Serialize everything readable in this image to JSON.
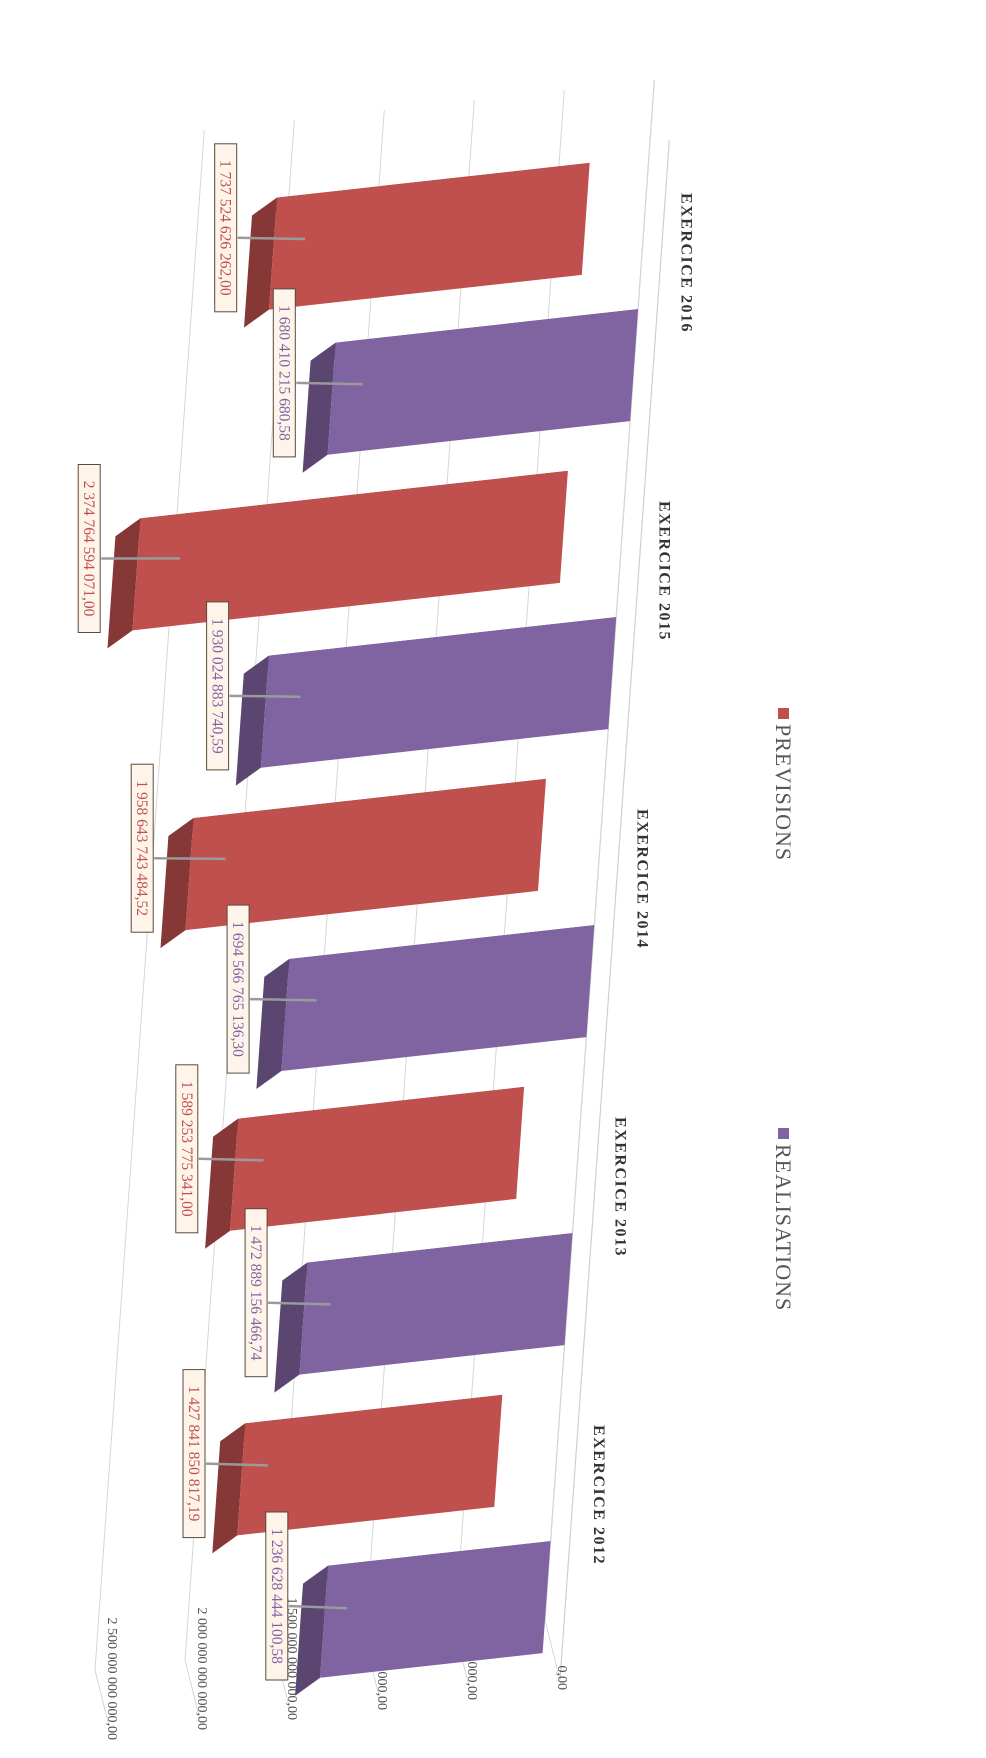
{
  "chart_data": {
    "type": "bar",
    "orientation": "3d-clustered-column",
    "categories": [
      "EXERCICE 2012",
      "EXERCICE 2013",
      "EXERCICE 2014",
      "EXERCICE 2015",
      "EXERCICE 2016"
    ],
    "series": [
      {
        "name": "PREVISIONS",
        "color": "#c0504d",
        "values": [
          1427841850817.19,
          1589253775341.0,
          1958643743484.52,
          2374764594071.0,
          1737524626262.0
        ],
        "labels": [
          "1 427 841 850 817,19",
          "1 589 253 775 341,00",
          "1 958 643 743 484,52",
          "2 374 764 594 071,00",
          "1 737 524 626 262,00"
        ]
      },
      {
        "name": "REALISATIONS",
        "color": "#8064a2",
        "values": [
          1236628444100.58,
          1472889156466.74,
          1694566765136.3,
          1930024883740.59,
          1680410215680.58
        ],
        "labels": [
          "1 236 628 444 100,58",
          "1 472 889 156 466,74",
          "1 694 566 765 136,30",
          "1 930 024 883 740,59",
          "1 680 410 215 680,58"
        ]
      }
    ],
    "yticks": [
      "0,00",
      "500 000 000 000,00",
      "1 000 000 000 000,00",
      "1 500 000 000 000,00",
      "2 000 000 000 000,00",
      "2 500 000 000 000,00"
    ],
    "ylim": [
      0,
      2500000000000
    ],
    "grid": true,
    "legend": "bottom",
    "legend_order": [
      "REALISATIONS",
      "PREVISIONS"
    ],
    "title": "",
    "xlabel": "",
    "ylabel": ""
  }
}
